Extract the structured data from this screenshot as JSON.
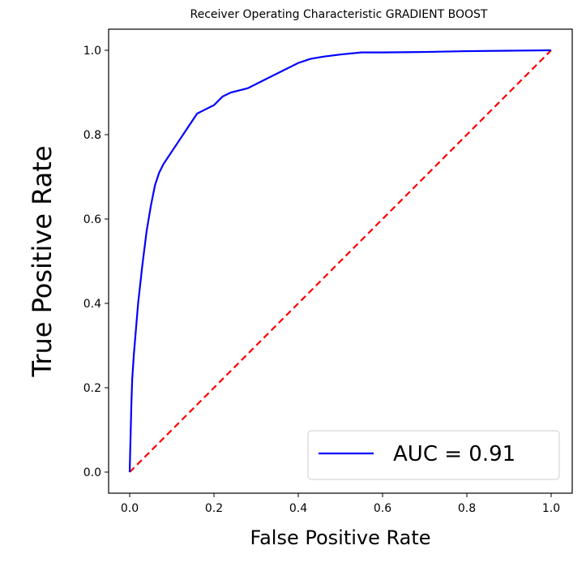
{
  "chart_data": {
    "type": "line",
    "title": "Receiver Operating Characteristic GRADIENT BOOST",
    "xlabel": "False Positive Rate",
    "ylabel": "True Positive Rate",
    "xlim": [
      -0.05,
      1.05
    ],
    "ylim": [
      -0.05,
      1.05
    ],
    "xticks": [
      0.0,
      0.2,
      0.4,
      0.6,
      0.8,
      1.0
    ],
    "yticks": [
      0.0,
      0.2,
      0.4,
      0.6,
      0.8,
      1.0
    ],
    "xtick_labels": [
      "0.0",
      "0.2",
      "0.4",
      "0.6",
      "0.8",
      "1.0"
    ],
    "ytick_labels": [
      "0.0",
      "0.2",
      "0.4",
      "0.6",
      "0.8",
      "1.0"
    ],
    "grid": false,
    "legend_position": "bottom-right",
    "series": [
      {
        "name": "AUC = 0.91",
        "color": "#0000ff",
        "style": "solid",
        "x": [
          0.0,
          0.002,
          0.004,
          0.006,
          0.01,
          0.015,
          0.02,
          0.03,
          0.04,
          0.05,
          0.06,
          0.07,
          0.08,
          0.1,
          0.12,
          0.14,
          0.16,
          0.18,
          0.2,
          0.22,
          0.24,
          0.26,
          0.28,
          0.3,
          0.32,
          0.34,
          0.36,
          0.38,
          0.4,
          0.43,
          0.46,
          0.5,
          0.55,
          0.6,
          0.7,
          0.8,
          0.9,
          1.0
        ],
        "y": [
          0.0,
          0.08,
          0.16,
          0.22,
          0.28,
          0.34,
          0.4,
          0.49,
          0.57,
          0.63,
          0.68,
          0.71,
          0.73,
          0.76,
          0.79,
          0.82,
          0.85,
          0.86,
          0.87,
          0.89,
          0.9,
          0.905,
          0.91,
          0.92,
          0.93,
          0.94,
          0.95,
          0.96,
          0.97,
          0.98,
          0.985,
          0.99,
          0.995,
          0.995,
          0.996,
          0.998,
          0.999,
          1.0
        ]
      }
    ],
    "reference_line": {
      "color": "#ff0000",
      "style": "dashed",
      "x": [
        0.0,
        1.0
      ],
      "y": [
        0.0,
        1.0
      ]
    }
  }
}
